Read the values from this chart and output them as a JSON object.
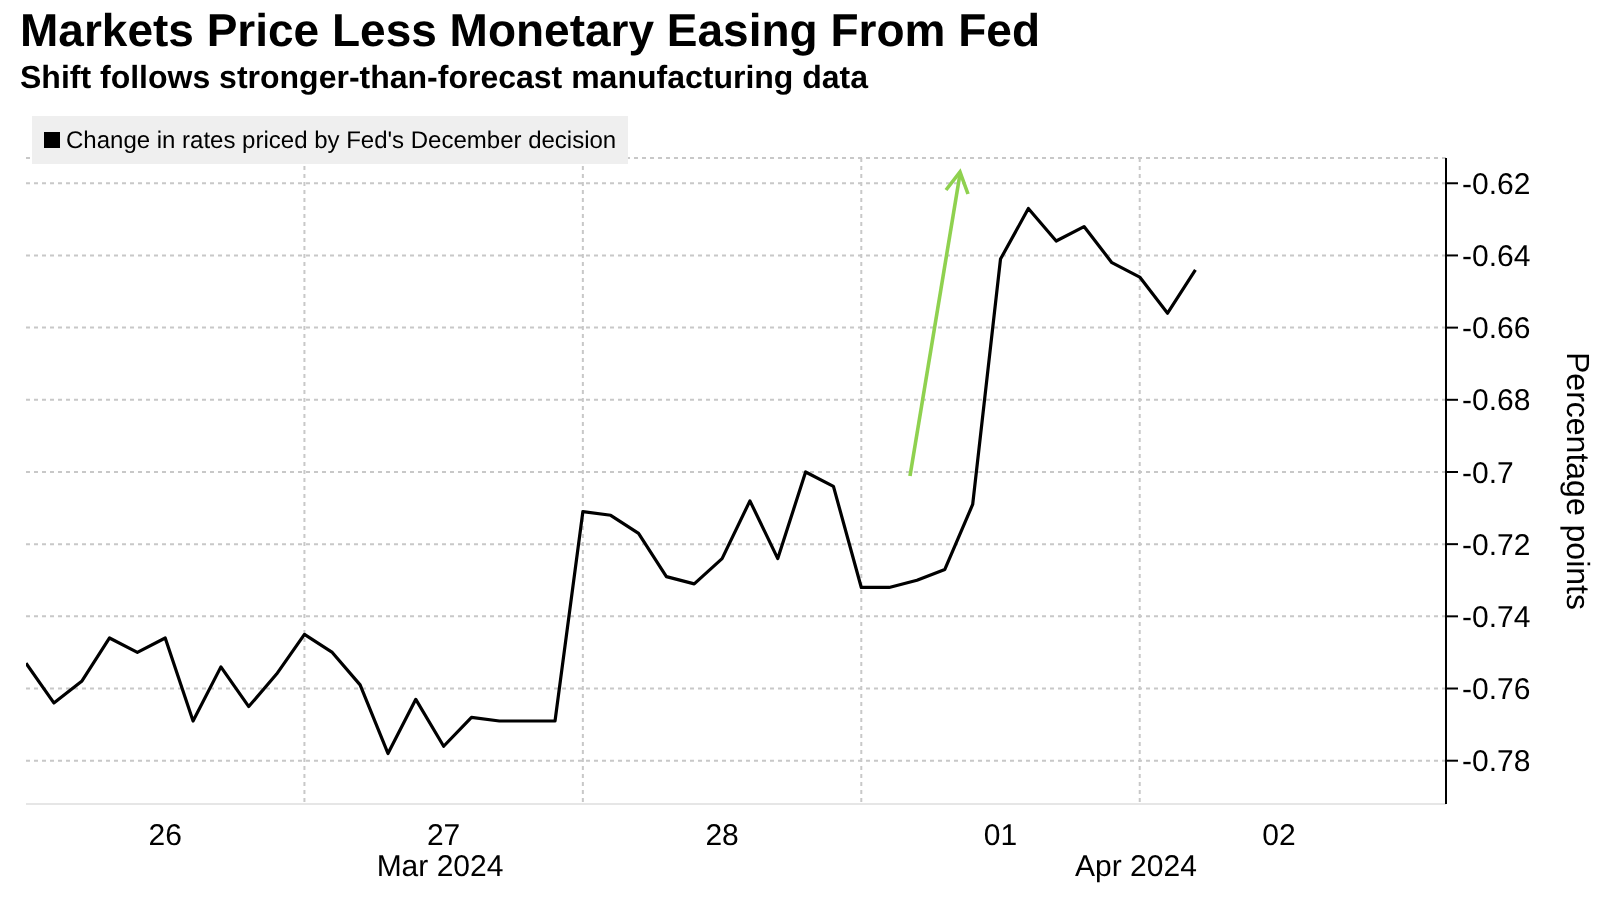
{
  "chart_data": {
    "type": "line",
    "title": "Markets Price Less Monetary Easing From Fed",
    "subtitle": "Shift follows stronger-than-forecast manufacturing data",
    "ylabel": "Percentage points",
    "categories": [
      null,
      null,
      null,
      null,
      null,
      "26",
      null,
      null,
      null,
      null,
      null,
      null,
      null,
      null,
      null,
      "27",
      null,
      null,
      null,
      null,
      null,
      null,
      null,
      null,
      null,
      "28",
      null,
      null,
      null,
      null,
      null,
      null,
      null,
      null,
      null,
      "01",
      null,
      null,
      null,
      null,
      null,
      null,
      null,
      null,
      null,
      "02",
      null,
      null,
      null,
      null,
      null,
      null
    ],
    "series": [
      {
        "name": "Change in rates priced by Fed's December decision",
        "color": "#000000",
        "values": [
          -0.753,
          -0.764,
          -0.758,
          -0.746,
          -0.75,
          -0.746,
          -0.769,
          -0.754,
          -0.765,
          -0.756,
          -0.745,
          -0.75,
          -0.759,
          -0.778,
          -0.763,
          -0.776,
          -0.768,
          -0.769,
          -0.769,
          -0.769,
          -0.711,
          -0.712,
          -0.717,
          -0.729,
          -0.731,
          -0.724,
          -0.708,
          -0.724,
          -0.7,
          -0.704,
          -0.732,
          -0.732,
          -0.73,
          -0.727,
          -0.709,
          -0.641,
          -0.627,
          -0.636,
          -0.632,
          -0.642,
          -0.646,
          -0.656,
          -0.644,
          null,
          null,
          null,
          null,
          null,
          null,
          null,
          null,
          null
        ]
      }
    ],
    "ylim": [
      -0.792,
      -0.613
    ],
    "yticks": [
      -0.78,
      -0.76,
      -0.74,
      -0.72,
      -0.7,
      -0.68,
      -0.66,
      -0.64,
      -0.62
    ],
    "annotations": [
      "Mar 2024",
      "Apr 2024"
    ],
    "grid": true,
    "legend": "top left",
    "marker": "none",
    "line_style": "solid"
  }
}
